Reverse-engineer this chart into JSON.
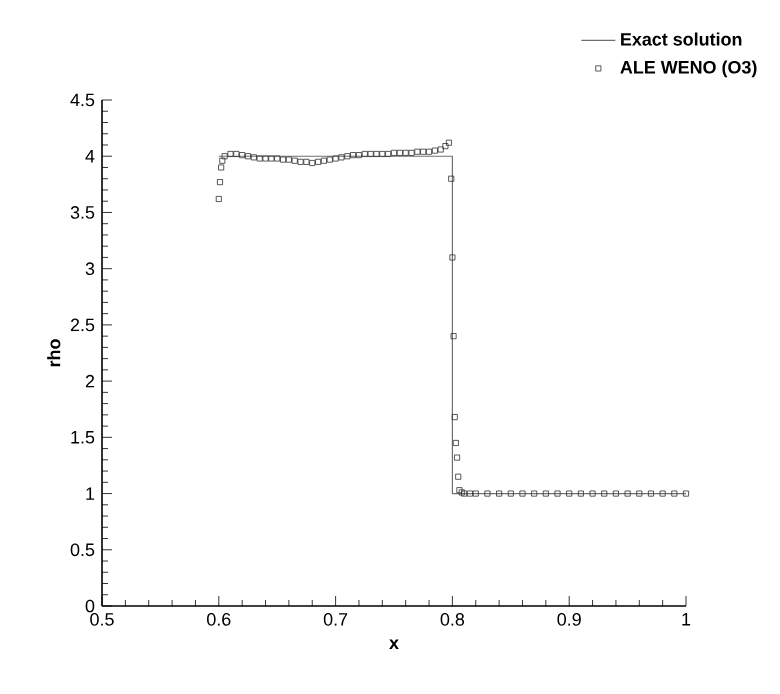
{
  "chart_data": {
    "type": "line",
    "xlabel": "x",
    "ylabel": "rho",
    "xlim": [
      0.5,
      1
    ],
    "ylim": [
      0,
      4.5
    ],
    "xticks": [
      0.5,
      0.6,
      0.7,
      0.8,
      0.9,
      1
    ],
    "yticks": [
      0,
      0.5,
      1,
      1.5,
      2,
      2.5,
      3,
      3.5,
      4,
      4.5
    ],
    "legend": "top right",
    "grid": false,
    "series": [
      {
        "name": "Exact solution",
        "color": "#707070",
        "line_style": "solid",
        "marker": "none",
        "x": [
          0.6,
          0.8,
          0.8,
          1.0
        ],
        "values": [
          4,
          4,
          1,
          1
        ]
      },
      {
        "name": "ALE WENO (O3)",
        "type": "scatter",
        "color": "#303030",
        "marker": "square",
        "x": [
          0.6,
          0.601,
          0.602,
          0.603,
          0.605,
          0.61,
          0.615,
          0.62,
          0.625,
          0.63,
          0.635,
          0.64,
          0.645,
          0.65,
          0.655,
          0.66,
          0.665,
          0.67,
          0.675,
          0.68,
          0.685,
          0.69,
          0.695,
          0.7,
          0.705,
          0.71,
          0.715,
          0.72,
          0.725,
          0.73,
          0.735,
          0.74,
          0.745,
          0.75,
          0.755,
          0.76,
          0.765,
          0.77,
          0.775,
          0.78,
          0.785,
          0.79,
          0.794,
          0.797,
          0.799,
          0.8,
          0.801,
          0.802,
          0.803,
          0.804,
          0.805,
          0.806,
          0.808,
          0.81,
          0.815,
          0.82,
          0.83,
          0.84,
          0.85,
          0.86,
          0.87,
          0.88,
          0.89,
          0.9,
          0.91,
          0.92,
          0.93,
          0.94,
          0.95,
          0.96,
          0.97,
          0.98,
          0.99,
          1.0
        ],
        "values": [
          3.62,
          3.77,
          3.9,
          3.96,
          4.0,
          4.02,
          4.02,
          4.01,
          4.0,
          3.99,
          3.98,
          3.98,
          3.98,
          3.98,
          3.97,
          3.97,
          3.96,
          3.95,
          3.95,
          3.94,
          3.95,
          3.96,
          3.97,
          3.98,
          3.99,
          4.0,
          4.01,
          4.01,
          4.02,
          4.02,
          4.02,
          4.02,
          4.02,
          4.03,
          4.03,
          4.03,
          4.03,
          4.04,
          4.04,
          4.04,
          4.05,
          4.06,
          4.09,
          4.12,
          3.8,
          3.1,
          2.4,
          1.68,
          1.45,
          1.32,
          1.15,
          1.03,
          1.01,
          1.0,
          1.0,
          1.0,
          1.0,
          1.0,
          1.0,
          1.0,
          1.0,
          1.0,
          1.0,
          1.0,
          1.0,
          1.0,
          1.0,
          1.0,
          1.0,
          1.0,
          1.0,
          1.0,
          1.0,
          1.0
        ]
      }
    ]
  }
}
